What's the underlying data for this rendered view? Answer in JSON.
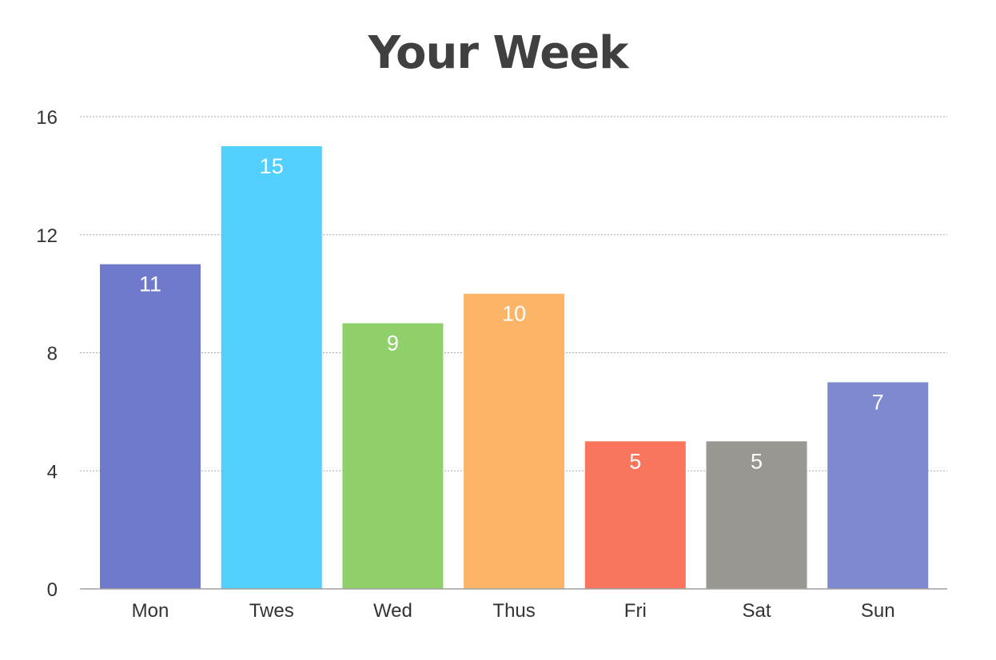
{
  "chart_data": {
    "type": "bar",
    "title": "Your Week",
    "xlabel": "",
    "ylabel": "",
    "ylim": [
      0,
      16
    ],
    "yticks": [
      0,
      4,
      8,
      12,
      16
    ],
    "grid": true,
    "categories": [
      "Mon",
      "Twes",
      "Wed",
      "Thus",
      "Fri",
      "Sat",
      "Sun"
    ],
    "values": [
      11,
      15,
      9,
      10,
      5,
      5,
      7
    ],
    "data_labels": [
      "11",
      "15",
      "9",
      "10",
      "5",
      "5",
      "7"
    ],
    "colors": [
      "#6f7bca",
      "#53cffd",
      "#8fd06b",
      "#fcb567",
      "#f9755d",
      "#9a9691",
      "#7f89d0"
    ]
  }
}
